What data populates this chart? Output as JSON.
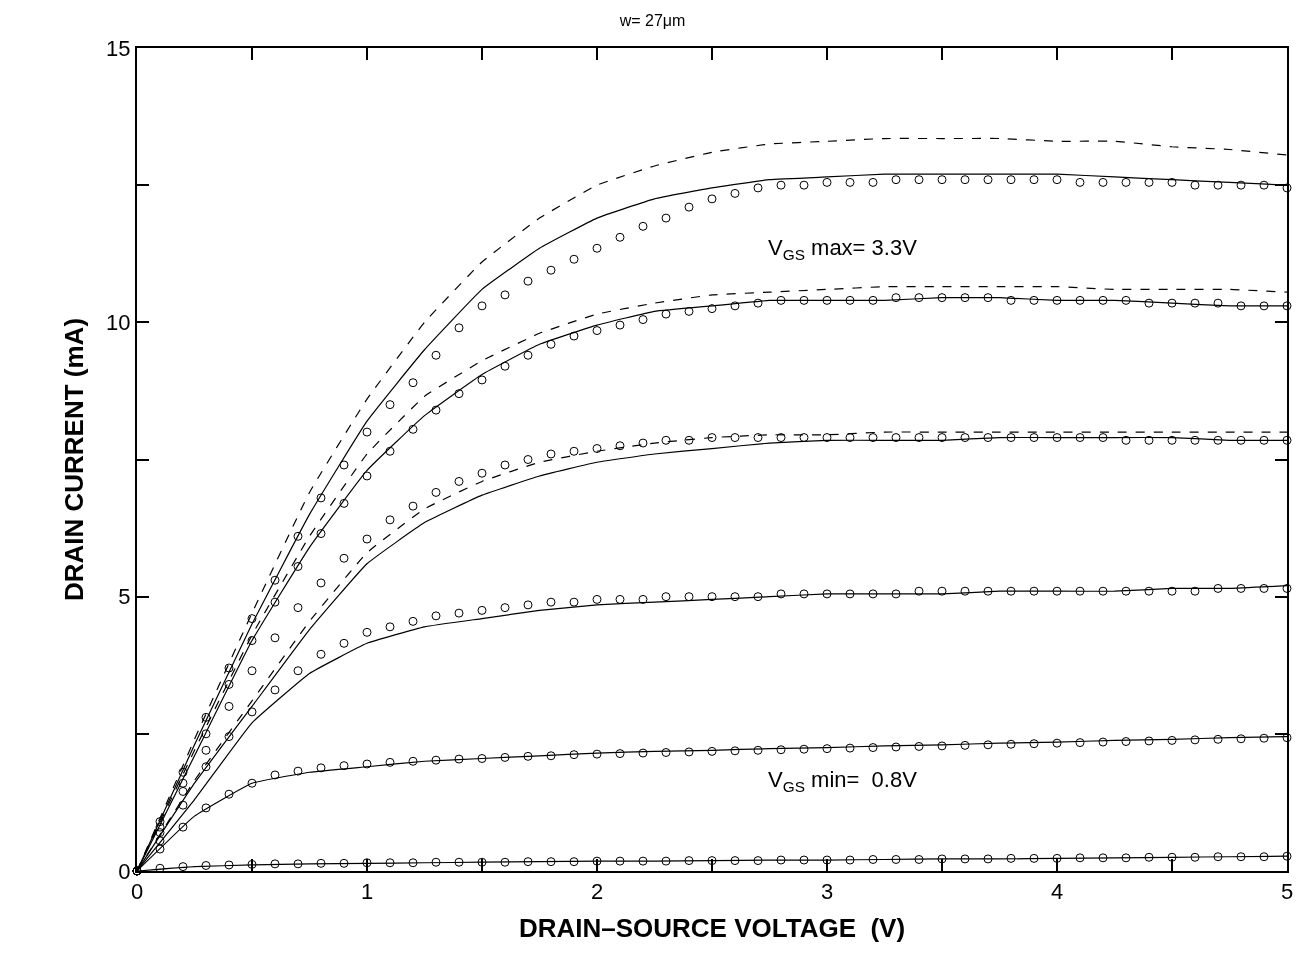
{
  "chart_data": {
    "type": "scatter",
    "title": "w= 27μm",
    "xlabel": "DRAIN–SOURCE VOLTAGE  (V)",
    "ylabel": "DRAIN CURRENT (mA)",
    "x": [
      0,
      0.1,
      0.2,
      0.3,
      0.4,
      0.5,
      0.6,
      0.7,
      0.8,
      0.9,
      1.0,
      1.1,
      1.2,
      1.3,
      1.4,
      1.5,
      1.6,
      1.7,
      1.8,
      1.9,
      2.0,
      2.1,
      2.2,
      2.3,
      2.4,
      2.5,
      2.6,
      2.7,
      2.8,
      2.9,
      3.0,
      3.1,
      3.2,
      3.3,
      3.4,
      3.5,
      3.6,
      3.7,
      3.8,
      3.9,
      4.0,
      4.1,
      4.2,
      4.3,
      4.4,
      4.5,
      4.6,
      4.7,
      4.8,
      4.9,
      5.0
    ],
    "series": [
      {
        "marker": "circle",
        "color": "#000000",
        "values": [
          0,
          0.9,
          1.8,
          2.8,
          3.7,
          4.6,
          5.3,
          6.1,
          6.8,
          7.4,
          8.0,
          8.5,
          8.9,
          9.4,
          9.9,
          10.3,
          10.5,
          10.75,
          10.95,
          11.15,
          11.35,
          11.55,
          11.75,
          11.9,
          12.1,
          12.25,
          12.35,
          12.45,
          12.5,
          12.5,
          12.55,
          12.55,
          12.55,
          12.6,
          12.6,
          12.6,
          12.6,
          12.6,
          12.6,
          12.6,
          12.6,
          12.55,
          12.55,
          12.55,
          12.55,
          12.55,
          12.5,
          12.5,
          12.5,
          12.5,
          12.45
        ]
      },
      {
        "marker": "circle",
        "color": "#000000",
        "values": [
          0,
          0.8,
          1.6,
          2.5,
          3.4,
          4.2,
          4.9,
          5.55,
          6.15,
          6.7,
          7.2,
          7.65,
          8.05,
          8.4,
          8.7,
          8.95,
          9.2,
          9.4,
          9.6,
          9.75,
          9.85,
          9.95,
          10.05,
          10.15,
          10.2,
          10.25,
          10.3,
          10.35,
          10.4,
          10.4,
          10.4,
          10.4,
          10.4,
          10.45,
          10.45,
          10.45,
          10.45,
          10.45,
          10.4,
          10.4,
          10.4,
          10.4,
          10.4,
          10.4,
          10.35,
          10.35,
          10.35,
          10.35,
          10.3,
          10.3,
          10.3
        ]
      },
      {
        "marker": "circle",
        "color": "#000000",
        "values": [
          0,
          0.7,
          1.45,
          2.2,
          3.0,
          3.65,
          4.25,
          4.8,
          5.25,
          5.7,
          6.05,
          6.4,
          6.65,
          6.9,
          7.1,
          7.25,
          7.4,
          7.5,
          7.6,
          7.65,
          7.7,
          7.75,
          7.8,
          7.85,
          7.85,
          7.9,
          7.9,
          7.9,
          7.9,
          7.9,
          7.9,
          7.9,
          7.9,
          7.9,
          7.9,
          7.9,
          7.9,
          7.9,
          7.9,
          7.9,
          7.9,
          7.9,
          7.9,
          7.85,
          7.85,
          7.85,
          7.85,
          7.85,
          7.85,
          7.85,
          7.85
        ]
      },
      {
        "marker": "circle",
        "color": "#000000",
        "values": [
          0,
          0.55,
          1.2,
          1.9,
          2.45,
          2.9,
          3.3,
          3.65,
          3.95,
          4.15,
          4.35,
          4.45,
          4.55,
          4.65,
          4.7,
          4.75,
          4.8,
          4.85,
          4.9,
          4.9,
          4.95,
          4.95,
          4.95,
          5.0,
          5.0,
          5.0,
          5.0,
          5.0,
          5.05,
          5.05,
          5.05,
          5.05,
          5.05,
          5.05,
          5.1,
          5.1,
          5.1,
          5.1,
          5.1,
          5.1,
          5.1,
          5.1,
          5.1,
          5.1,
          5.1,
          5.1,
          5.1,
          5.15,
          5.15,
          5.15,
          5.15
        ]
      },
      {
        "marker": "circle",
        "color": "#000000",
        "values": [
          0,
          0.4,
          0.8,
          1.15,
          1.4,
          1.6,
          1.75,
          1.82,
          1.88,
          1.92,
          1.95,
          1.98,
          2.0,
          2.02,
          2.04,
          2.05,
          2.07,
          2.09,
          2.1,
          2.12,
          2.13,
          2.14,
          2.15,
          2.16,
          2.17,
          2.18,
          2.19,
          2.2,
          2.21,
          2.22,
          2.23,
          2.24,
          2.25,
          2.26,
          2.27,
          2.28,
          2.29,
          2.3,
          2.31,
          2.32,
          2.33,
          2.34,
          2.35,
          2.36,
          2.37,
          2.38,
          2.39,
          2.4,
          2.41,
          2.42,
          2.43
        ]
      },
      {
        "marker": "circle",
        "color": "#000000",
        "values": [
          0,
          0.05,
          0.08,
          0.1,
          0.11,
          0.12,
          0.13,
          0.13,
          0.14,
          0.14,
          0.15,
          0.15,
          0.15,
          0.16,
          0.16,
          0.16,
          0.16,
          0.17,
          0.17,
          0.17,
          0.18,
          0.18,
          0.18,
          0.18,
          0.19,
          0.19,
          0.19,
          0.19,
          0.2,
          0.2,
          0.2,
          0.2,
          0.21,
          0.21,
          0.21,
          0.22,
          0.22,
          0.22,
          0.23,
          0.23,
          0.23,
          0.24,
          0.24,
          0.24,
          0.25,
          0.25,
          0.25,
          0.26,
          0.26,
          0.26,
          0.27
        ]
      },
      {
        "type": "line",
        "line_style": "solid",
        "color": "#000000",
        "x": [
          0,
          0.25,
          0.5,
          0.75,
          1,
          1.25,
          1.5,
          1.75,
          2,
          2.25,
          2.5,
          2.75,
          3,
          3.25,
          3.5,
          3.75,
          4,
          4.25,
          4.5,
          4.75,
          5
        ],
        "values": [
          0,
          2.3,
          4.5,
          6.5,
          8.2,
          9.5,
          10.6,
          11.35,
          11.9,
          12.25,
          12.45,
          12.6,
          12.65,
          12.7,
          12.7,
          12.7,
          12.7,
          12.65,
          12.6,
          12.55,
          12.5
        ]
      },
      {
        "type": "line",
        "line_style": "solid",
        "color": "#000000",
        "x": [
          0,
          0.25,
          0.5,
          0.75,
          1,
          1.25,
          1.5,
          1.75,
          2,
          2.25,
          2.5,
          2.75,
          3,
          3.25,
          3.5,
          3.75,
          4,
          4.25,
          4.5,
          4.75,
          5
        ],
        "values": [
          0,
          2.1,
          4.2,
          5.9,
          7.3,
          8.3,
          9.05,
          9.6,
          9.95,
          10.2,
          10.3,
          10.4,
          10.4,
          10.4,
          10.45,
          10.45,
          10.4,
          10.4,
          10.35,
          10.3,
          10.3
        ]
      },
      {
        "type": "line",
        "line_style": "solid",
        "color": "#000000",
        "x": [
          0,
          0.25,
          0.5,
          0.75,
          1,
          1.25,
          1.5,
          1.75,
          2,
          2.25,
          2.5,
          2.75,
          3,
          3.25,
          3.5,
          3.75,
          4,
          4.25,
          4.5,
          4.75,
          5
        ],
        "values": [
          0,
          1.6,
          3.0,
          4.4,
          5.6,
          6.35,
          6.85,
          7.2,
          7.45,
          7.6,
          7.7,
          7.8,
          7.85,
          7.85,
          7.85,
          7.9,
          7.9,
          7.9,
          7.9,
          7.85,
          7.85
        ]
      },
      {
        "type": "line",
        "line_style": "solid",
        "color": "#000000",
        "x": [
          0,
          0.25,
          0.5,
          0.75,
          1,
          1.25,
          1.5,
          1.75,
          2,
          2.25,
          2.5,
          2.75,
          3,
          3.25,
          3.5,
          3.75,
          4,
          4.25,
          4.5,
          4.75,
          5
        ],
        "values": [
          0,
          1.3,
          2.7,
          3.6,
          4.15,
          4.45,
          4.6,
          4.75,
          4.85,
          4.9,
          4.95,
          5.0,
          5.05,
          5.05,
          5.05,
          5.1,
          5.1,
          5.1,
          5.15,
          5.15,
          5.2
        ]
      },
      {
        "type": "line",
        "line_style": "solid",
        "color": "#000000",
        "x": [
          0,
          0.25,
          0.5,
          0.75,
          1,
          1.25,
          1.5,
          1.75,
          2,
          2.25,
          2.5,
          2.75,
          3,
          3.25,
          3.5,
          3.75,
          4,
          4.25,
          4.5,
          4.75,
          5
        ],
        "values": [
          0,
          1.0,
          1.6,
          1.8,
          1.9,
          2.0,
          2.05,
          2.1,
          2.15,
          2.18,
          2.2,
          2.23,
          2.25,
          2.28,
          2.3,
          2.33,
          2.35,
          2.38,
          2.4,
          2.43,
          2.45
        ]
      },
      {
        "type": "line",
        "line_style": "solid",
        "color": "#000000",
        "x": [
          0,
          0.25,
          0.5,
          0.75,
          1,
          1.25,
          1.5,
          1.75,
          2,
          2.25,
          2.5,
          2.75,
          3,
          3.25,
          3.5,
          3.75,
          4,
          4.25,
          4.5,
          4.75,
          5
        ],
        "values": [
          0,
          0.08,
          0.11,
          0.13,
          0.14,
          0.15,
          0.16,
          0.17,
          0.18,
          0.18,
          0.19,
          0.2,
          0.2,
          0.21,
          0.22,
          0.22,
          0.23,
          0.24,
          0.25,
          0.26,
          0.27
        ]
      },
      {
        "type": "line",
        "line_style": "dashed",
        "color": "#000000",
        "x": [
          0,
          0.25,
          0.5,
          0.75,
          1,
          1.25,
          1.5,
          1.75,
          2,
          2.25,
          2.5,
          2.75,
          3,
          3.25,
          3.5,
          3.75,
          4,
          4.25,
          4.5,
          4.75,
          5
        ],
        "values": [
          0,
          2.4,
          4.7,
          6.9,
          8.6,
          10.0,
          11.1,
          11.9,
          12.5,
          12.85,
          13.1,
          13.25,
          13.3,
          13.35,
          13.35,
          13.35,
          13.3,
          13.3,
          13.2,
          13.15,
          13.05
        ]
      },
      {
        "type": "line",
        "line_style": "dashed",
        "color": "#000000",
        "x": [
          0,
          0.25,
          0.5,
          0.75,
          1,
          1.25,
          1.5,
          1.75,
          2,
          2.25,
          2.5,
          2.75,
          3,
          3.25,
          3.5,
          3.75,
          4,
          4.25,
          4.5,
          4.75,
          5
        ],
        "values": [
          0,
          2.2,
          4.3,
          6.1,
          7.6,
          8.65,
          9.3,
          9.8,
          10.15,
          10.35,
          10.5,
          10.55,
          10.6,
          10.65,
          10.65,
          10.65,
          10.65,
          10.6,
          10.6,
          10.6,
          10.55
        ]
      },
      {
        "type": "line",
        "line_style": "dashed",
        "color": "#000000",
        "x": [
          0,
          0.25,
          0.5,
          0.75,
          1,
          1.25,
          1.5,
          1.75,
          2,
          2.25,
          2.5,
          2.75,
          3,
          3.25,
          3.5,
          3.75,
          4,
          4.25,
          4.5,
          4.75,
          5
        ],
        "values": [
          0,
          1.65,
          3.1,
          4.55,
          5.8,
          6.6,
          7.1,
          7.45,
          7.65,
          7.8,
          7.9,
          7.95,
          7.95,
          8.0,
          8.0,
          8.0,
          8.0,
          8.0,
          8.0,
          8.0,
          8.0
        ]
      }
    ],
    "annotations": [
      "V$_{GS}$ max= 3.3V",
      "V$_{GS}$ min=  0.8V"
    ],
    "xlim": [
      0,
      5
    ],
    "ylim": [
      0,
      15
    ],
    "xticks": [
      0,
      {
        "value": 0.5,
        "label": null
      },
      1,
      {
        "value": 1.5,
        "label": null
      },
      2,
      {
        "value": 2.5,
        "label": null
      },
      3,
      {
        "value": 3.5,
        "label": null
      },
      4,
      {
        "value": 4.5,
        "label": null
      },
      5
    ],
    "yticks": [
      0,
      {
        "value": 2.5,
        "label": null
      },
      5,
      {
        "value": 7.5,
        "label": null
      },
      10,
      {
        "value": 12.5,
        "label": null
      },
      15
    ],
    "tick_labels": true
  }
}
